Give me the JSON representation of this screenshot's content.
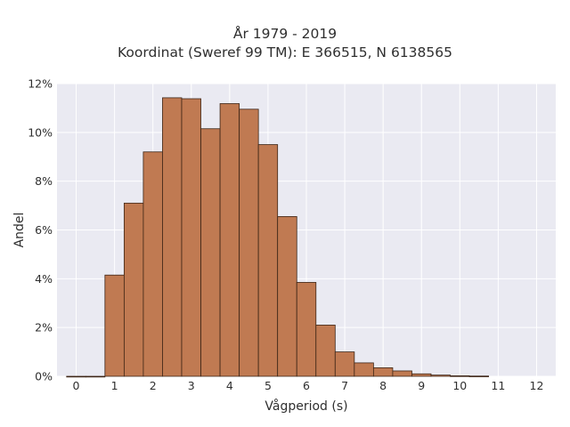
{
  "chart_data": {
    "type": "bar",
    "title_line1": "År 1979 - 2019",
    "title_line2": "Koordinat (Sweref 99 TM): E 366515, N 6138565",
    "xlabel": "Vågperiod (s)",
    "ylabel": "Andel",
    "bin_width": 0.5,
    "bins": [
      {
        "start": 0.0,
        "value": 0.0
      },
      {
        "start": 0.5,
        "value": 0.0
      },
      {
        "start": 1.0,
        "value": 4.15
      },
      {
        "start": 1.5,
        "value": 7.1
      },
      {
        "start": 2.0,
        "value": 9.2
      },
      {
        "start": 2.5,
        "value": 11.42
      },
      {
        "start": 3.0,
        "value": 11.38
      },
      {
        "start": 3.5,
        "value": 10.15
      },
      {
        "start": 4.0,
        "value": 11.18
      },
      {
        "start": 4.5,
        "value": 10.95
      },
      {
        "start": 5.0,
        "value": 9.5
      },
      {
        "start": 5.5,
        "value": 6.55
      },
      {
        "start": 6.0,
        "value": 3.85
      },
      {
        "start": 6.5,
        "value": 2.1
      },
      {
        "start": 7.0,
        "value": 1.0
      },
      {
        "start": 7.5,
        "value": 0.55
      },
      {
        "start": 8.0,
        "value": 0.35
      },
      {
        "start": 8.5,
        "value": 0.22
      },
      {
        "start": 9.0,
        "value": 0.1
      },
      {
        "start": 9.5,
        "value": 0.05
      },
      {
        "start": 10.0,
        "value": 0.02
      },
      {
        "start": 10.5,
        "value": 0.01
      }
    ],
    "xlim": [
      -0.5,
      12.5
    ],
    "ylim": [
      0,
      12
    ],
    "x_ticks": [
      0,
      1,
      2,
      3,
      4,
      5,
      6,
      7,
      8,
      9,
      10,
      11,
      12
    ],
    "y_ticks": [
      0,
      2,
      4,
      6,
      8,
      10,
      12
    ],
    "y_tick_labels": [
      "0%",
      "2%",
      "4%",
      "6%",
      "8%",
      "10%",
      "12%"
    ],
    "grid": true,
    "colors": {
      "bar_fill": "#c07a52",
      "bar_edge": "#3d2516",
      "plot_bg": "#eaeaf2",
      "grid": "#ffffff"
    }
  }
}
